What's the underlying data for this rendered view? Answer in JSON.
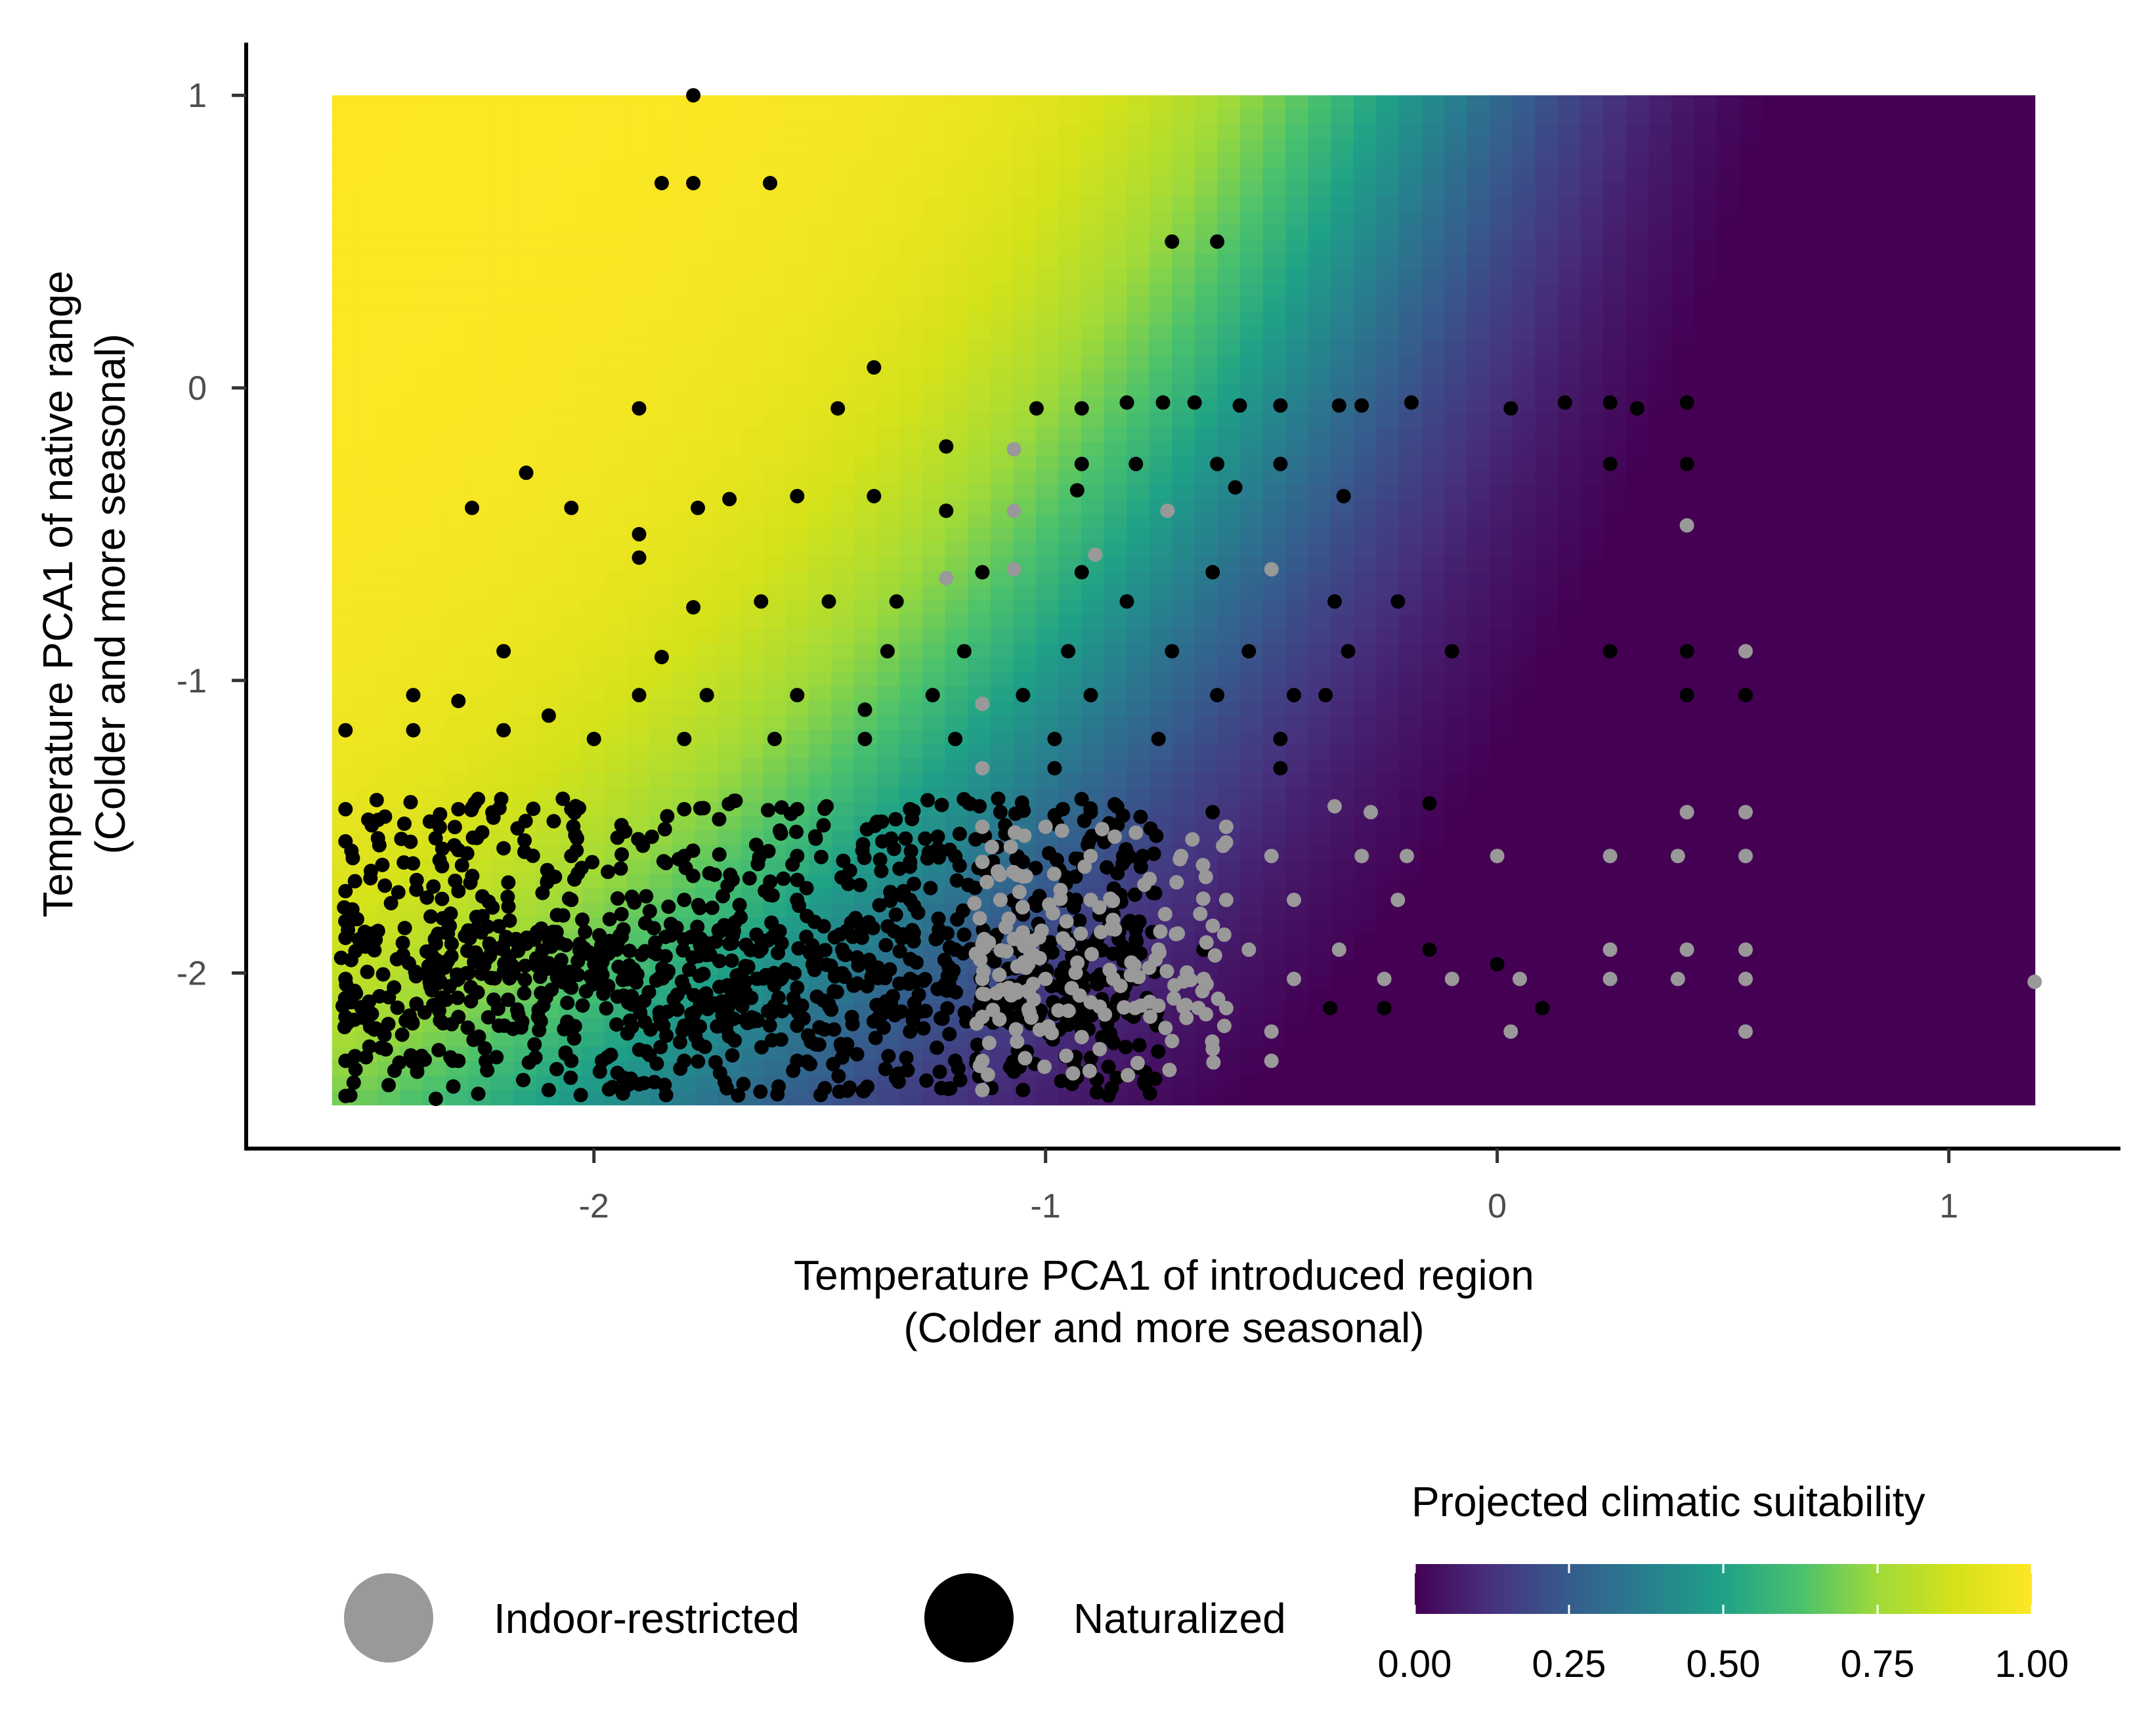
{
  "chart_data": {
    "type": "scatter",
    "background": "heatmap",
    "x_axis": {
      "label_line1": "Temperature PCA1 of introduced region",
      "label_line2": "(Colder and more seasonal)",
      "range": [
        -2.77,
        1.38
      ],
      "ticks": [
        -2,
        -1,
        0,
        1
      ],
      "tick_labels": [
        "-2",
        "-1",
        "0",
        "1"
      ]
    },
    "y_axis": {
      "label_line1": "Temperature PCA1 of native range",
      "label_line2": "(Colder and more seasonal)",
      "range": [
        -2.6,
        1.18
      ],
      "ticks": [
        1,
        0,
        -1,
        -2
      ],
      "tick_labels": [
        "1",
        "0",
        "-1",
        "-2"
      ]
    },
    "heatmap": {
      "x_extent": [
        -2.58,
        1.19
      ],
      "y_extent": [
        -2.45,
        1.0
      ],
      "colormap": "viridis",
      "value_name": "Projected climatic suitability"
    },
    "legend": {
      "points": [
        {
          "label": "Indoor-restricted",
          "color": "#999999"
        },
        {
          "label": "Naturalized",
          "color": "#000000"
        }
      ],
      "colorbar": {
        "title": "Projected climatic suitability",
        "ticks": [
          "0.00",
          "0.25",
          "0.50",
          "0.75",
          "1.00"
        ],
        "range": [
          0,
          1
        ]
      }
    },
    "series": [
      {
        "name": "Naturalized",
        "color": "#000000",
        "sampled_points": [
          [
            -1.78,
            1.0
          ],
          [
            -1.85,
            0.7
          ],
          [
            -1.78,
            0.7
          ],
          [
            -1.61,
            0.7
          ],
          [
            -0.72,
            0.5
          ],
          [
            -0.62,
            0.5
          ],
          [
            -1.38,
            0.07
          ],
          [
            -1.9,
            -0.07
          ],
          [
            -1.46,
            -0.07
          ],
          [
            -1.02,
            -0.07
          ],
          [
            -0.92,
            -0.07
          ],
          [
            -0.82,
            -0.05
          ],
          [
            -0.74,
            -0.05
          ],
          [
            -0.67,
            -0.05
          ],
          [
            -0.57,
            -0.06
          ],
          [
            -0.48,
            -0.06
          ],
          [
            -0.35,
            -0.06
          ],
          [
            -0.3,
            -0.06
          ],
          [
            -0.19,
            -0.05
          ],
          [
            0.03,
            -0.07
          ],
          [
            0.15,
            -0.05
          ],
          [
            0.25,
            -0.05
          ],
          [
            0.31,
            -0.07
          ],
          [
            0.42,
            -0.05
          ],
          [
            -1.22,
            -0.2
          ],
          [
            0.25,
            -0.26
          ],
          [
            0.42,
            -0.26
          ],
          [
            -2.15,
            -0.29
          ],
          [
            -0.92,
            -0.26
          ],
          [
            -0.8,
            -0.26
          ],
          [
            -0.62,
            -0.26
          ],
          [
            -0.48,
            -0.26
          ],
          [
            -2.27,
            -0.41
          ],
          [
            -2.05,
            -0.41
          ],
          [
            -1.77,
            -0.41
          ],
          [
            -1.7,
            -0.38
          ],
          [
            -1.55,
            -0.37
          ],
          [
            -1.38,
            -0.37
          ],
          [
            -1.22,
            -0.42
          ],
          [
            -0.93,
            -0.35
          ],
          [
            -0.58,
            -0.34
          ],
          [
            -0.34,
            -0.37
          ],
          [
            -1.9,
            -0.5
          ],
          [
            -1.9,
            -0.58
          ],
          [
            -1.78,
            -0.75
          ],
          [
            -1.63,
            -0.73
          ],
          [
            -1.48,
            -0.73
          ],
          [
            -1.33,
            -0.73
          ],
          [
            -1.14,
            -0.63
          ],
          [
            -0.92,
            -0.63
          ],
          [
            -0.82,
            -0.73
          ],
          [
            -0.63,
            -0.63
          ],
          [
            -0.36,
            -0.73
          ],
          [
            -0.22,
            -0.73
          ],
          [
            -1.35,
            -0.9
          ],
          [
            -1.18,
            -0.9
          ],
          [
            -0.95,
            -0.9
          ],
          [
            -0.72,
            -0.9
          ],
          [
            -0.55,
            -0.9
          ],
          [
            -0.33,
            -0.9
          ],
          [
            -0.1,
            -0.9
          ],
          [
            0.25,
            -0.9
          ],
          [
            0.42,
            -0.9
          ],
          [
            -2.2,
            -0.9
          ],
          [
            -1.85,
            -0.92
          ],
          [
            -2.4,
            -1.05
          ],
          [
            -2.3,
            -1.07
          ],
          [
            -2.1,
            -1.12
          ],
          [
            -1.9,
            -1.05
          ],
          [
            -1.75,
            -1.05
          ],
          [
            -1.55,
            -1.05
          ],
          [
            -1.4,
            -1.1
          ],
          [
            -1.25,
            -1.05
          ],
          [
            -1.05,
            -1.05
          ],
          [
            -0.9,
            -1.05
          ],
          [
            -0.62,
            -1.05
          ],
          [
            -0.45,
            -1.05
          ],
          [
            -0.38,
            -1.05
          ],
          [
            0.42,
            -1.05
          ],
          [
            0.55,
            -1.05
          ],
          [
            -2.55,
            -1.17
          ],
          [
            -2.4,
            -1.17
          ],
          [
            -2.2,
            -1.17
          ],
          [
            -2.0,
            -1.2
          ],
          [
            -1.8,
            -1.2
          ],
          [
            -1.6,
            -1.2
          ],
          [
            -1.4,
            -1.2
          ],
          [
            -1.2,
            -1.2
          ],
          [
            -0.98,
            -1.2
          ],
          [
            -0.75,
            -1.2
          ],
          [
            -0.48,
            -1.2
          ],
          [
            -0.48,
            -1.3
          ],
          [
            -0.98,
            -1.3
          ],
          [
            -2.55,
            -1.44
          ],
          [
            -2.3,
            -1.44
          ],
          [
            -2.05,
            -1.44
          ],
          [
            -1.8,
            -1.44
          ],
          [
            -1.55,
            -1.44
          ],
          [
            -1.3,
            -1.44
          ],
          [
            -1.1,
            -1.45
          ],
          [
            -0.9,
            -1.45
          ],
          [
            -0.63,
            -1.45
          ],
          [
            -0.15,
            -1.42
          ],
          [
            -2.55,
            -1.55
          ],
          [
            -2.3,
            -1.58
          ],
          [
            -2.05,
            -1.6
          ],
          [
            -1.8,
            -1.6
          ],
          [
            -1.55,
            -1.6
          ],
          [
            -1.3,
            -1.62
          ],
          [
            -1.05,
            -1.62
          ],
          [
            -2.55,
            -1.72
          ],
          [
            -2.3,
            -1.72
          ],
          [
            -2.05,
            -1.75
          ],
          [
            -1.8,
            -1.75
          ],
          [
            -1.55,
            -1.75
          ],
          [
            -1.3,
            -1.75
          ],
          [
            -1.05,
            -1.8
          ],
          [
            -0.85,
            -1.8
          ],
          [
            -2.55,
            -1.88
          ],
          [
            -2.35,
            -1.9
          ],
          [
            -2.15,
            -1.9
          ],
          [
            -1.95,
            -1.92
          ],
          [
            -1.7,
            -1.9
          ],
          [
            -1.45,
            -1.92
          ],
          [
            -1.2,
            -1.92
          ],
          [
            -0.9,
            -1.92
          ],
          [
            -0.65,
            -1.92
          ],
          [
            -0.15,
            -1.92
          ],
          [
            -2.55,
            -2.02
          ],
          [
            -2.3,
            -2.02
          ],
          [
            -2.05,
            -2.05
          ],
          [
            -1.8,
            -2.05
          ],
          [
            -1.55,
            -2.05
          ],
          [
            -1.3,
            -2.02
          ],
          [
            -1.05,
            -2.05
          ],
          [
            -0.8,
            -2.02
          ],
          [
            -2.55,
            -2.15
          ],
          [
            -2.3,
            -2.15
          ],
          [
            -2.05,
            -2.18
          ],
          [
            -1.8,
            -2.18
          ],
          [
            -1.55,
            -2.18
          ],
          [
            -1.3,
            -2.2
          ],
          [
            -1.05,
            -2.15
          ],
          [
            -2.55,
            -2.3
          ],
          [
            -2.3,
            -2.3
          ],
          [
            -2.05,
            -2.3
          ],
          [
            -1.8,
            -2.3
          ],
          [
            -1.55,
            -2.3
          ],
          [
            -1.2,
            -2.3
          ],
          [
            -2.55,
            -2.42
          ],
          [
            -2.35,
            -2.43
          ],
          [
            -2.1,
            -2.4
          ],
          [
            -1.9,
            -2.38
          ],
          [
            -1.05,
            -2.4
          ],
          [
            -0.78,
            -2.38
          ],
          [
            -0.37,
            -2.12
          ],
          [
            -0.25,
            -2.12
          ],
          [
            0.0,
            -1.97
          ],
          [
            0.1,
            -2.12
          ]
        ]
      },
      {
        "name": "Indoor-restricted",
        "color": "#999999",
        "sampled_points": [
          [
            -1.07,
            -0.21
          ],
          [
            -0.73,
            -0.42
          ],
          [
            -1.07,
            -0.42
          ],
          [
            0.42,
            -0.47
          ],
          [
            -0.89,
            -0.57
          ],
          [
            -1.07,
            -0.62
          ],
          [
            -0.5,
            -0.62
          ],
          [
            -1.22,
            -0.65
          ],
          [
            0.55,
            -0.9
          ],
          [
            -1.14,
            -1.08
          ],
          [
            -1.14,
            -1.3
          ],
          [
            -1.14,
            -1.5
          ],
          [
            -1.0,
            -1.5
          ],
          [
            -0.8,
            -1.52
          ],
          [
            -0.6,
            -1.5
          ],
          [
            -0.36,
            -1.43
          ],
          [
            -0.28,
            -1.45
          ],
          [
            0.42,
            -1.45
          ],
          [
            0.55,
            -1.45
          ],
          [
            -1.14,
            -1.62
          ],
          [
            -0.9,
            -1.6
          ],
          [
            -0.7,
            -1.6
          ],
          [
            -0.5,
            -1.6
          ],
          [
            -0.3,
            -1.6
          ],
          [
            -0.2,
            -1.6
          ],
          [
            0.0,
            -1.6
          ],
          [
            0.25,
            -1.6
          ],
          [
            0.4,
            -1.6
          ],
          [
            0.55,
            -1.6
          ],
          [
            -1.1,
            -1.75
          ],
          [
            -0.9,
            -1.75
          ],
          [
            -0.6,
            -1.75
          ],
          [
            -0.45,
            -1.75
          ],
          [
            -0.22,
            -1.75
          ],
          [
            -1.14,
            -1.9
          ],
          [
            -0.95,
            -1.9
          ],
          [
            -0.75,
            -1.92
          ],
          [
            -0.55,
            -1.92
          ],
          [
            -0.35,
            -1.92
          ],
          [
            0.25,
            -1.92
          ],
          [
            0.42,
            -1.92
          ],
          [
            0.55,
            -1.92
          ],
          [
            -1.14,
            -2.02
          ],
          [
            -1.0,
            -2.02
          ],
          [
            -0.85,
            -2.02
          ],
          [
            -0.65,
            -2.02
          ],
          [
            -0.45,
            -2.02
          ],
          [
            -0.25,
            -2.02
          ],
          [
            -0.1,
            -2.02
          ],
          [
            0.05,
            -2.02
          ],
          [
            0.25,
            -2.02
          ],
          [
            0.4,
            -2.02
          ],
          [
            0.55,
            -2.02
          ],
          [
            1.19,
            -2.03
          ],
          [
            -1.14,
            -2.15
          ],
          [
            -0.9,
            -2.1
          ],
          [
            -0.6,
            -2.12
          ],
          [
            -0.5,
            -2.2
          ],
          [
            0.03,
            -2.2
          ],
          [
            0.55,
            -2.2
          ],
          [
            -1.14,
            -2.3
          ],
          [
            -0.5,
            -2.3
          ],
          [
            -1.14,
            -2.4
          ]
        ]
      }
    ]
  }
}
